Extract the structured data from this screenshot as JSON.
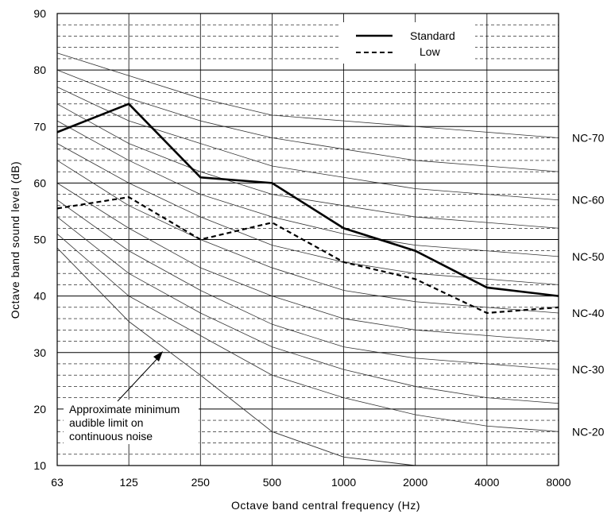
{
  "chart_data": {
    "type": "line",
    "title": "",
    "xlabel": "Octave band central frequency (Hz)",
    "ylabel": "Octave band sound level (dB)",
    "x": [
      "63",
      "125",
      "250",
      "500",
      "1000",
      "2000",
      "4000",
      "8000"
    ],
    "ylim": [
      10,
      90
    ],
    "yticks": [
      "10",
      "20",
      "30",
      "40",
      "50",
      "60",
      "70",
      "80",
      "90"
    ],
    "x_scale": "octave",
    "grid": "solid major gridlines every 10 dB, dashed minor gridlines every 2 dB",
    "legend": {
      "placement": "top-right",
      "entries": [
        {
          "label": "Standard",
          "style": "solid"
        },
        {
          "label": "Low",
          "style": "dashed"
        }
      ]
    },
    "series": [
      {
        "name": "Standard",
        "style": "solid",
        "values": [
          69,
          74,
          61,
          60,
          52,
          48,
          41.5,
          40
        ]
      },
      {
        "name": "Low",
        "style": "dashed",
        "values": [
          55.5,
          57.5,
          50,
          53,
          46,
          43,
          37,
          38
        ]
      }
    ],
    "nc_curves": [
      {
        "label": "NC-70",
        "values": [
          83,
          79,
          75,
          72,
          71,
          70,
          69,
          68
        ]
      },
      {
        "label": "",
        "values": [
          80,
          75,
          71,
          68,
          66,
          64,
          63,
          62
        ]
      },
      {
        "label": "NC-60",
        "values": [
          77,
          71,
          67,
          63,
          61,
          59,
          58,
          57
        ]
      },
      {
        "label": "",
        "values": [
          74,
          67,
          62,
          58,
          56,
          54,
          53,
          52
        ]
      },
      {
        "label": "NC-50",
        "values": [
          71,
          64,
          58,
          54,
          51,
          49,
          48,
          47
        ]
      },
      {
        "label": "",
        "values": [
          67,
          60,
          54,
          49,
          46,
          44,
          43,
          42
        ]
      },
      {
        "label": "NC-40",
        "values": [
          64,
          56,
          50,
          45,
          41,
          39,
          38,
          37
        ]
      },
      {
        "label": "",
        "values": [
          60,
          52,
          45,
          40,
          36,
          34,
          33,
          32
        ]
      },
      {
        "label": "NC-30",
        "values": [
          57,
          48,
          41,
          35,
          31,
          29,
          28,
          27
        ]
      },
      {
        "label": "",
        "values": [
          54,
          44,
          37,
          31,
          27,
          24,
          22,
          21
        ]
      },
      {
        "label": "NC-20",
        "values": [
          51,
          40,
          33,
          26,
          22,
          19,
          17,
          16
        ]
      },
      {
        "label": "Approximate minimum audible limit on continuous noise",
        "values": [
          48.5,
          35.5,
          26,
          16,
          11.5,
          10
        ]
      }
    ],
    "annotation": {
      "lines": [
        "Approximate minimum",
        "audible limit on",
        "continuous noise"
      ]
    }
  }
}
